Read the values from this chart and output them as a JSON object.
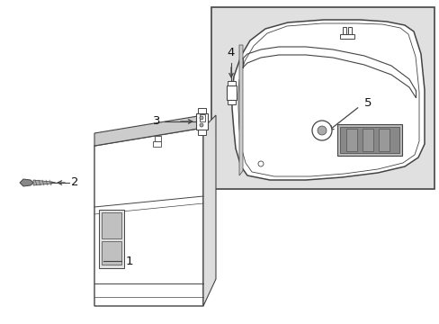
{
  "bg_color": "#ffffff",
  "line_color": "#444444",
  "inset_bg": "#e0e0e0",
  "label_1": "1",
  "label_2": "2",
  "label_3": "3",
  "label_4": "4",
  "label_5": "5",
  "figsize": [
    4.89,
    3.6
  ],
  "dpi": 100
}
